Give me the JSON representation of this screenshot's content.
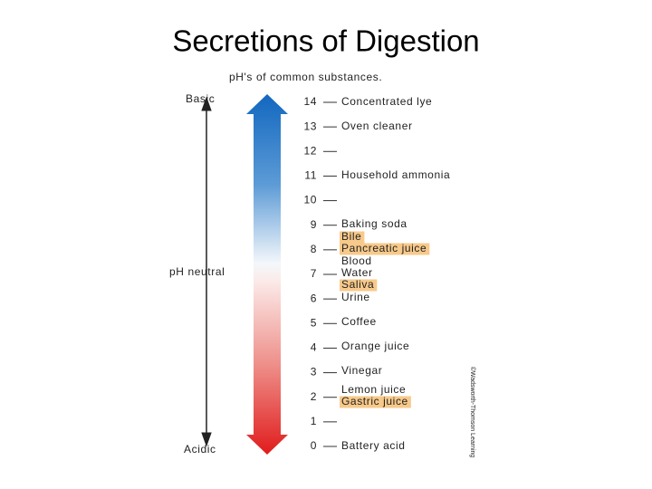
{
  "title": "Secretions of Digestion",
  "figure": {
    "heading": "pH's of common substances.",
    "left_labels": {
      "top": "Basic",
      "middle": "pH neutral",
      "bottom": "Acidic"
    },
    "scale": [
      14,
      13,
      12,
      11,
      10,
      9,
      8,
      7,
      6,
      5,
      4,
      3,
      2,
      1,
      0
    ],
    "substances": [
      {
        "label": "Concentrated lye",
        "highlighted": false
      },
      {
        "label": "Oven cleaner",
        "highlighted": false
      },
      {
        "label": "Household ammonia",
        "highlighted": false
      },
      {
        "label": "Baking soda",
        "highlighted": false
      },
      {
        "label": "Bile",
        "highlighted": true
      },
      {
        "label": "Pancreatic juice",
        "highlighted": true
      },
      {
        "label": "Blood",
        "highlighted": false
      },
      {
        "label": "Water",
        "highlighted": false
      },
      {
        "label": "Saliva",
        "highlighted": true
      },
      {
        "label": "Urine",
        "highlighted": false
      },
      {
        "label": "Coffee",
        "highlighted": false
      },
      {
        "label": "Orange juice",
        "highlighted": false
      },
      {
        "label": "Vinegar",
        "highlighted": false
      },
      {
        "label": "Lemon juice",
        "highlighted": false
      },
      {
        "label": "Gastric juice",
        "highlighted": true
      },
      {
        "label": "Battery acid",
        "highlighted": false
      }
    ],
    "credit": "©Wadsworth-Thomson Learning"
  }
}
